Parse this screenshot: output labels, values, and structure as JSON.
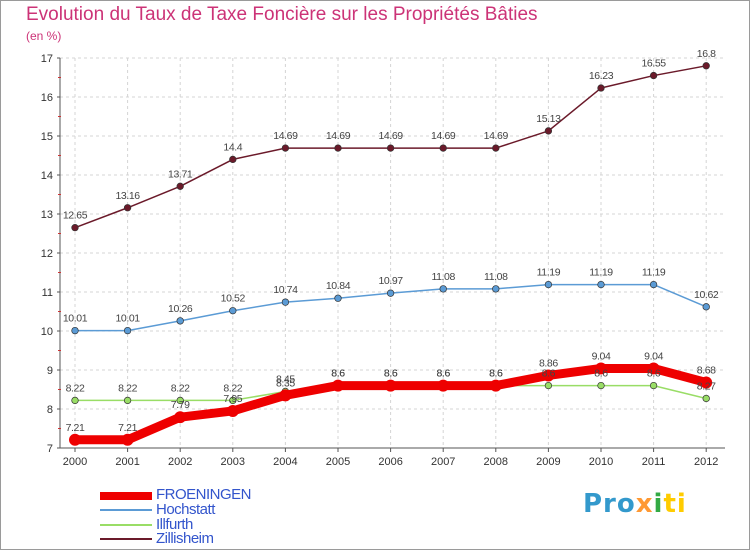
{
  "chart_data": {
    "type": "line",
    "title": "Evolution du Taux de Taxe Foncière sur les Propriétés Bâties",
    "unit_label": "(en %)",
    "x": [
      "2000",
      "2001",
      "2002",
      "2003",
      "2004",
      "2005",
      "2006",
      "2007",
      "2008",
      "2009",
      "2010",
      "2011",
      "2012"
    ],
    "ylim": [
      7,
      17
    ],
    "yticks": [
      7,
      8,
      9,
      10,
      11,
      12,
      13,
      14,
      15,
      16,
      17
    ],
    "grid": true,
    "legend_position": "bottom-left",
    "series": [
      {
        "name": "Zillisheim",
        "color": "#6b1a2a",
        "values": [
          12.65,
          13.16,
          13.71,
          14.4,
          14.69,
          14.69,
          14.69,
          14.69,
          14.69,
          15.13,
          16.23,
          16.55,
          16.8
        ],
        "labels": [
          "12.65",
          "13.16",
          "13.71",
          "14.4",
          "14.69",
          "14.69",
          "14.69",
          "14.69",
          "14.69",
          "15.13",
          "16.23",
          "16.55",
          "16.8"
        ]
      },
      {
        "name": "Hochstatt",
        "color": "#5b9bd5",
        "values": [
          10.01,
          10.01,
          10.26,
          10.52,
          10.74,
          10.84,
          10.97,
          11.08,
          11.08,
          11.19,
          11.19,
          11.19,
          10.62
        ],
        "labels": [
          "10.01",
          "10.01",
          "10.26",
          "10.52",
          "10.74",
          "10.84",
          "10.97",
          "11.08",
          "11.08",
          "11.19",
          "11.19",
          "11.19",
          "10.62"
        ]
      },
      {
        "name": "Illfurth",
        "color": "#99dd66",
        "values": [
          8.22,
          8.22,
          8.22,
          8.22,
          8.45,
          8.6,
          8.6,
          8.6,
          8.6,
          8.6,
          8.6,
          8.6,
          8.27
        ],
        "labels": [
          "8.22",
          "8.22",
          "8.22",
          "8.22",
          "8.45",
          "8.6",
          "8.6",
          "8.6",
          "8.6",
          "8.6",
          "8.6",
          "8.6",
          "8.27"
        ]
      },
      {
        "name": "FROENINGEN",
        "color": "#ee0000",
        "values": [
          7.21,
          7.21,
          7.79,
          7.95,
          8.35,
          8.6,
          8.6,
          8.6,
          8.6,
          8.86,
          9.04,
          9.04,
          8.68
        ],
        "labels": [
          "7.21",
          "7.21",
          "7.79",
          "7.95",
          "8.35",
          "8.6",
          "8.6",
          "8.6",
          "8.6",
          "8.86",
          "9.04",
          "9.04",
          "8.68"
        ]
      }
    ],
    "legend": [
      "FROENINGEN",
      "Hochstatt",
      "Illfurth",
      "Zillisheim"
    ]
  },
  "logo": {
    "p1": "Pro",
    "p2": "x",
    "p3": "i",
    "p4": "ti"
  }
}
